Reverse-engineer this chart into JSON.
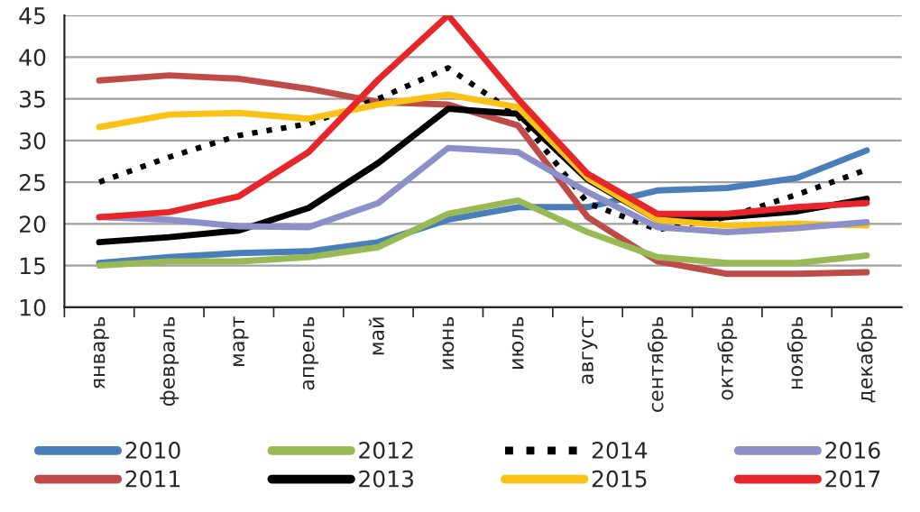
{
  "chart_data": {
    "type": "line",
    "categories": [
      "январь",
      "февраль",
      "март",
      "апрель",
      "май",
      "июнь",
      "июль",
      "август",
      "сентябрь",
      "октябрь",
      "ноябрь",
      "декабрь"
    ],
    "ylim": [
      10,
      45
    ],
    "yticks": [
      10,
      15,
      20,
      25,
      30,
      35,
      40,
      45
    ],
    "grid": "y",
    "legend": "bottom",
    "marker": "none",
    "series": [
      {
        "name": "2010",
        "color": "#4a7ebb",
        "values": [
          15.3,
          16,
          16.5,
          16.7,
          17.8,
          20.5,
          22,
          22,
          24,
          24.3,
          25.5,
          28.8
        ]
      },
      {
        "name": "2011",
        "color": "#be4b48",
        "values": [
          37.2,
          37.8,
          37.4,
          36.2,
          34.6,
          34.3,
          31.8,
          20.8,
          15.5,
          14,
          14,
          14.2
        ]
      },
      {
        "name": "2012",
        "color": "#98b954",
        "values": [
          15,
          15.5,
          15.5,
          16,
          17.2,
          21.2,
          22.8,
          19,
          16,
          15.3,
          15.3,
          16.2
        ]
      },
      {
        "name": "2013",
        "color": "#000000",
        "values": [
          17.8,
          18.4,
          19.2,
          21.9,
          27.3,
          33.8,
          33.2,
          25.3,
          20.5,
          20.8,
          21.5,
          23
        ]
      },
      {
        "name": "2014",
        "color": "#000000",
        "line_style": "dotted",
        "values": [
          25,
          28,
          30.6,
          32,
          35,
          38.7,
          33,
          22.5,
          19.3,
          20.8,
          23.5,
          26.5
        ]
      },
      {
        "name": "2015",
        "color": "#f9c215",
        "values": [
          31.6,
          33.1,
          33.3,
          32.6,
          34.3,
          35.5,
          34,
          25.5,
          20.5,
          19.8,
          20,
          19.8
        ]
      },
      {
        "name": "2016",
        "color": "#8c8fc8",
        "values": [
          20.8,
          20.5,
          19.7,
          19.6,
          22.5,
          29.1,
          28.6,
          23.8,
          19.6,
          19,
          19.5,
          20.2
        ]
      },
      {
        "name": "2017",
        "color": "#e8262a",
        "values": [
          20.8,
          21.4,
          23.3,
          28.6,
          37.3,
          45,
          35,
          26,
          21.2,
          21.2,
          22,
          22.5
        ]
      }
    ]
  }
}
